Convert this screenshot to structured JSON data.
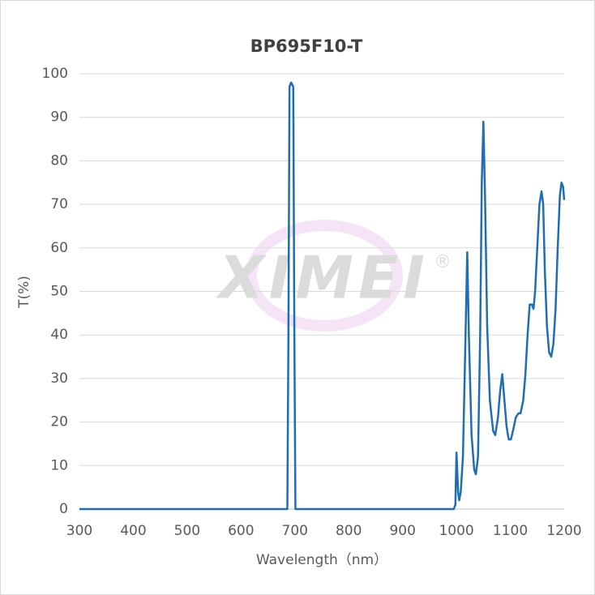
{
  "chart_data": {
    "type": "line",
    "title": "BP695F10-T",
    "xlabel": "Wavelength（nm）",
    "ylabel": "T(%)",
    "watermark": "XIMEI",
    "watermark_mark": "®",
    "x": [
      300,
      686,
      688,
      690,
      693,
      697,
      699,
      701,
      995,
      998,
      1000,
      1003,
      1005,
      1008,
      1012,
      1016,
      1020,
      1023,
      1028,
      1033,
      1036,
      1040,
      1044,
      1047,
      1050,
      1053,
      1057,
      1062,
      1068,
      1072,
      1077,
      1081,
      1085,
      1089,
      1093,
      1097,
      1101,
      1105,
      1110,
      1115,
      1119,
      1124,
      1128,
      1132,
      1136,
      1140,
      1143,
      1146,
      1150,
      1154,
      1158,
      1161,
      1164,
      1168,
      1172,
      1176,
      1180,
      1184,
      1188,
      1192,
      1195,
      1198,
      1200
    ],
    "series": [
      {
        "color": "#1f6db3",
        "values": [
          0,
          0,
          40,
          97,
          98,
          97,
          40,
          0,
          0,
          1,
          13,
          4,
          2,
          4,
          12,
          35,
          59,
          40,
          17,
          9,
          8,
          12,
          40,
          75,
          89,
          72,
          42,
          25,
          18,
          17,
          21,
          27,
          31,
          25,
          19,
          16,
          16,
          18,
          21,
          22,
          22,
          25,
          31,
          40,
          47,
          47,
          46,
          50,
          60,
          70,
          73,
          70,
          55,
          42,
          36,
          35,
          38,
          46,
          60,
          72,
          75,
          74,
          71
        ]
      }
    ],
    "xlim": [
      300,
      1200
    ],
    "xticks": [
      300,
      400,
      500,
      600,
      700,
      800,
      900,
      1000,
      1100,
      1200
    ],
    "ylim": [
      0,
      100
    ],
    "yticks": [
      0,
      10,
      20,
      30,
      40,
      50,
      60,
      70,
      80,
      90,
      100
    ],
    "grid": true
  }
}
